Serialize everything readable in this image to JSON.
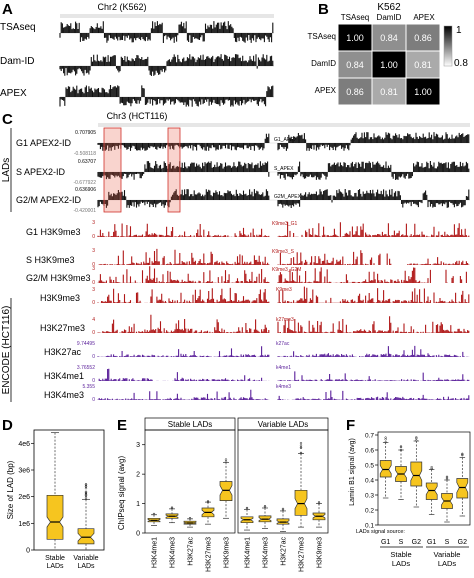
{
  "panels": {
    "A": {
      "letter": "A",
      "title": "Chr2 (K562)",
      "tracks": [
        "TSAseq",
        "Dam-ID",
        "APEX"
      ]
    },
    "B": {
      "letter": "B",
      "title": "K562",
      "labels": [
        "TSAseq",
        "DamID",
        "APEX"
      ],
      "matrix": [
        [
          1.0,
          0.84,
          0.86
        ],
        [
          0.84,
          1.0,
          0.81
        ],
        [
          0.86,
          0.81,
          1.0
        ]
      ],
      "matrix_text": [
        [
          "1.00",
          "0.84",
          "0.86"
        ],
        [
          "0.84",
          "1.00",
          "0.81"
        ],
        [
          "0.86",
          "0.81",
          "1.00"
        ]
      ],
      "colorbar_ticks": [
        "1",
        "0.8"
      ]
    },
    "C": {
      "letter": "C",
      "title": "Chr3 (HCT116)",
      "group_labels": {
        "lads": "LADs",
        "encode": "ENCODE (HCT116)"
      },
      "apex_tracks": [
        {
          "label": "G1 APEX2-ID",
          "top": "0.707905",
          "bottom": "-0.508118",
          "tag": "G1_APEX"
        },
        {
          "label": "S APEX2-ID",
          "top": "0.63707",
          "bottom": "-0.677922",
          "tag": "S_APEX"
        },
        {
          "label": "G2/M APEX2-ID",
          "top": "0.636906",
          "bottom": "-0.420001",
          "tag": "G2M_APEX"
        }
      ],
      "h3k9_tracks": [
        {
          "label": "G1 H3K9me3",
          "top": "3",
          "bottom": "0",
          "tag": "K9me3_G1"
        },
        {
          "label": "S H3K9me3",
          "top": "3",
          "bottom": "0",
          "tag": "K9me3_S"
        },
        {
          "label": "G2/M H3K9me3",
          "top": "3",
          "bottom": "0",
          "tag": "K9me3_G2M"
        }
      ],
      "encode_tracks": [
        {
          "label": "H3K9me3",
          "top": "3",
          "bottom": "0",
          "tag": "K9me3",
          "color": "#b01818"
        },
        {
          "label": "H3K27me3",
          "top": "4",
          "bottom": "0",
          "tag": "k27me3",
          "color": "#b01818"
        },
        {
          "label": "H3K27ac",
          "top": "9.74495",
          "bottom": "0",
          "tag": "k27ac",
          "color": "#5a1f9a"
        },
        {
          "label": "H3K4me1",
          "top": "3.76552",
          "bottom": "0",
          "tag": "k4me1",
          "color": "#5a1f9a"
        },
        {
          "label": "H3K4me3",
          "top": "5.355",
          "bottom": "0",
          "tag": "k4me3",
          "color": "#5a1f9a"
        }
      ]
    },
    "D": {
      "letter": "D",
      "ylabel": "Size of LAD (bp)",
      "yticks": [
        "4e6",
        "3e6",
        "2e6",
        "1e6",
        "0"
      ],
      "categories": [
        "Stable LADs",
        "Variable LADs"
      ]
    },
    "E": {
      "letter": "E",
      "ylabel": "ChIPseq signal (avg)",
      "yticks": [
        "3",
        "2",
        "1",
        "0"
      ],
      "facets": [
        "Stable LADs",
        "Variable LADs"
      ],
      "categories": [
        "H3K4me1",
        "H3K4me3",
        "H3K27ac",
        "H3K27me3",
        "H3K9me3"
      ]
    },
    "F": {
      "letter": "F",
      "ylabel": "Lamin B1 signal (avg)",
      "yticks": [
        "0.7",
        "0.6",
        "0.5",
        "0.4",
        "0.3",
        "0.2",
        "0.1"
      ],
      "categories": [
        "G1",
        "S",
        "G2",
        "G1",
        "S",
        "G2"
      ],
      "source_label": "LADs signal source:",
      "groups": [
        "Stable LADs",
        "Variable LADs"
      ]
    }
  },
  "chart_data": [
    {
      "type": "box",
      "panel": "D",
      "ylabel": "Size of LAD (bp)",
      "ylim": [
        0,
        4500000
      ],
      "categories": [
        "Stable LADs",
        "Variable LADs"
      ],
      "boxes": [
        {
          "min": 0,
          "q1": 400000,
          "median": 1050000,
          "q3": 2050000,
          "max": 4400000
        },
        {
          "min": 0,
          "q1": 230000,
          "median": 480000,
          "q3": 800000,
          "max": 1900000
        }
      ]
    },
    {
      "type": "box",
      "panel": "E",
      "ylabel": "ChIPseq signal (avg)",
      "ylim": [
        0,
        3.5
      ],
      "facets": [
        {
          "name": "Stable LADs",
          "categories": [
            "H3K4me1",
            "H3K4me3",
            "H3K27ac",
            "H3K27me3",
            "H3K9me3"
          ],
          "boxes": [
            {
              "min": 0.25,
              "q1": 0.38,
              "median": 0.43,
              "q3": 0.5,
              "max": 0.62
            },
            {
              "min": 0.35,
              "q1": 0.5,
              "median": 0.57,
              "q3": 0.65,
              "max": 0.82
            },
            {
              "min": 0.2,
              "q1": 0.3,
              "median": 0.34,
              "q3": 0.4,
              "max": 0.48
            },
            {
              "min": 0.3,
              "q1": 0.55,
              "median": 0.7,
              "q3": 0.85,
              "max": 1.05
            },
            {
              "min": 0.5,
              "q1": 1.1,
              "median": 1.45,
              "q3": 1.75,
              "max": 2.4
            }
          ]
        },
        {
          "name": "Variable LADs",
          "categories": [
            "H3K4me1",
            "H3K4me3",
            "H3K27ac",
            "H3K27me3",
            "H3K9me3"
          ],
          "boxes": [
            {
              "min": 0.1,
              "q1": 0.35,
              "median": 0.45,
              "q3": 0.55,
              "max": 0.8
            },
            {
              "min": 0.15,
              "q1": 0.38,
              "median": 0.47,
              "q3": 0.58,
              "max": 0.85
            },
            {
              "min": 0.05,
              "q1": 0.3,
              "median": 0.37,
              "q3": 0.48,
              "max": 0.75
            },
            {
              "min": 0.2,
              "q1": 0.6,
              "median": 1.0,
              "q3": 1.45,
              "max": 2.7
            },
            {
              "min": 0.2,
              "q1": 0.45,
              "median": 0.57,
              "q3": 0.68,
              "max": 1.0
            }
          ]
        }
      ]
    },
    {
      "type": "box",
      "panel": "F",
      "ylabel": "Lamin B1 signal (avg)",
      "ylim": [
        0.1,
        0.72
      ],
      "categories": [
        "G1",
        "S",
        "G2",
        "G1",
        "S",
        "G2"
      ],
      "groups": [
        "Stable LADs",
        "Stable LADs",
        "Stable LADs",
        "Variable LADs",
        "Variable LADs",
        "Variable LADs"
      ],
      "boxes": [
        {
          "min": 0.28,
          "q1": 0.42,
          "median": 0.47,
          "q3": 0.53,
          "max": 0.65
        },
        {
          "min": 0.27,
          "q1": 0.39,
          "median": 0.44,
          "q3": 0.49,
          "max": 0.6
        },
        {
          "min": 0.22,
          "q1": 0.36,
          "median": 0.43,
          "q3": 0.52,
          "max": 0.66
        },
        {
          "min": 0.17,
          "q1": 0.27,
          "median": 0.33,
          "q3": 0.38,
          "max": 0.47
        },
        {
          "min": 0.12,
          "q1": 0.21,
          "median": 0.26,
          "q3": 0.31,
          "max": 0.4
        },
        {
          "min": 0.16,
          "q1": 0.28,
          "median": 0.35,
          "q3": 0.41,
          "max": 0.55
        }
      ]
    }
  ]
}
